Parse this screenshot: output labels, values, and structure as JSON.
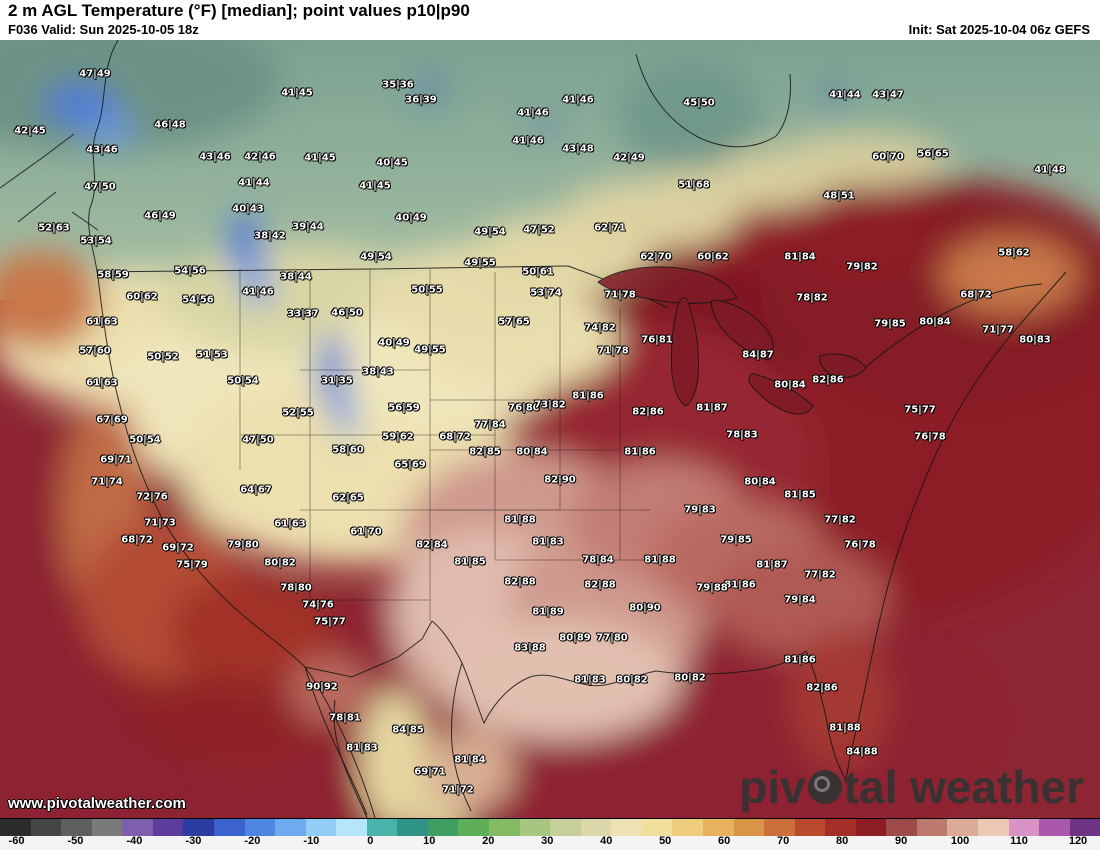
{
  "header": {
    "title": "2 m AGL Temperature (°F) [median]; point values p10|p90",
    "frame_info": "F036 Valid: Sun 2025-10-05 18z",
    "init_info": "Init: Sat 2025-10-04 06z GEFS"
  },
  "map": {
    "watermark": "www.pivotalweather.com",
    "brand": {
      "text": "pivotal weather",
      "part1": "piv",
      "part2": "tal weather"
    },
    "points": [
      [
        95,
        34,
        "47|49"
      ],
      [
        297,
        53,
        "41|45"
      ],
      [
        398,
        45,
        "35|36"
      ],
      [
        421,
        60,
        "36|39"
      ],
      [
        533,
        73,
        "41|46"
      ],
      [
        578,
        60,
        "41|46"
      ],
      [
        699,
        63,
        "45|50"
      ],
      [
        845,
        55,
        "41|44"
      ],
      [
        888,
        55,
        "43|47"
      ],
      [
        30,
        91,
        "42|45"
      ],
      [
        170,
        85,
        "46|48"
      ],
      [
        102,
        110,
        "43|46"
      ],
      [
        215,
        117,
        "43|46"
      ],
      [
        260,
        117,
        "42|46"
      ],
      [
        320,
        118,
        "41|45"
      ],
      [
        392,
        123,
        "40|45"
      ],
      [
        528,
        101,
        "41|46"
      ],
      [
        578,
        109,
        "43|48"
      ],
      [
        629,
        118,
        "42|49"
      ],
      [
        888,
        117,
        "60|70"
      ],
      [
        933,
        114,
        "56|65"
      ],
      [
        1050,
        130,
        "41|48"
      ],
      [
        100,
        147,
        "47|50"
      ],
      [
        254,
        143,
        "41|44"
      ],
      [
        375,
        146,
        "41|45"
      ],
      [
        694,
        145,
        "51|68"
      ],
      [
        839,
        156,
        "48|51"
      ],
      [
        160,
        176,
        "46|49"
      ],
      [
        248,
        169,
        "40|43"
      ],
      [
        308,
        187,
        "39|44"
      ],
      [
        411,
        178,
        "40|49"
      ],
      [
        490,
        192,
        "49|54"
      ],
      [
        539,
        190,
        "47|52"
      ],
      [
        610,
        188,
        "62|71"
      ],
      [
        54,
        188,
        "52|63"
      ],
      [
        96,
        201,
        "53|54"
      ],
      [
        270,
        196,
        "38|42"
      ],
      [
        1014,
        213,
        "58|62"
      ],
      [
        656,
        217,
        "62|70"
      ],
      [
        713,
        217,
        "60|62"
      ],
      [
        800,
        217,
        "81|84"
      ],
      [
        862,
        227,
        "79|82"
      ],
      [
        190,
        231,
        "54|56"
      ],
      [
        376,
        217,
        "49|54"
      ],
      [
        480,
        223,
        "49|55"
      ],
      [
        538,
        232,
        "50|61"
      ],
      [
        113,
        235,
        "58|59"
      ],
      [
        296,
        237,
        "38|44"
      ],
      [
        427,
        250,
        "50|55"
      ],
      [
        546,
        253,
        "53|74"
      ],
      [
        620,
        255,
        "71|78"
      ],
      [
        812,
        258,
        "78|82"
      ],
      [
        976,
        255,
        "68|72"
      ],
      [
        142,
        257,
        "60|62"
      ],
      [
        198,
        260,
        "54|56"
      ],
      [
        258,
        252,
        "41|46"
      ],
      [
        102,
        282,
        "61|63"
      ],
      [
        303,
        274,
        "33|37"
      ],
      [
        347,
        273,
        "46|50"
      ],
      [
        514,
        282,
        "57|65"
      ],
      [
        600,
        288,
        "74|82"
      ],
      [
        613,
        311,
        "71|78"
      ],
      [
        890,
        284,
        "79|85"
      ],
      [
        935,
        282,
        "80|84"
      ],
      [
        998,
        290,
        "71|77"
      ],
      [
        1035,
        300,
        "80|83"
      ],
      [
        95,
        311,
        "57|60"
      ],
      [
        163,
        317,
        "50|52"
      ],
      [
        212,
        315,
        "51|53"
      ],
      [
        394,
        303,
        "40|49"
      ],
      [
        430,
        310,
        "49|55"
      ],
      [
        337,
        341,
        "31|35"
      ],
      [
        378,
        332,
        "38|43"
      ],
      [
        243,
        341,
        "50|54"
      ],
      [
        102,
        343,
        "61|63"
      ],
      [
        657,
        300,
        "76|81"
      ],
      [
        758,
        315,
        "84|87"
      ],
      [
        790,
        345,
        "80|84"
      ],
      [
        828,
        340,
        "82|86"
      ],
      [
        524,
        368,
        "76|80"
      ],
      [
        550,
        365,
        "73|82"
      ],
      [
        588,
        356,
        "81|86"
      ],
      [
        648,
        372,
        "82|86"
      ],
      [
        712,
        368,
        "81|87"
      ],
      [
        742,
        395,
        "78|83"
      ],
      [
        490,
        385,
        "77|84"
      ],
      [
        485,
        412,
        "82|85"
      ],
      [
        532,
        412,
        "80|84"
      ],
      [
        560,
        440,
        "82|90"
      ],
      [
        640,
        412,
        "81|86"
      ],
      [
        298,
        373,
        "52|55"
      ],
      [
        404,
        368,
        "56|59"
      ],
      [
        398,
        397,
        "59|62"
      ],
      [
        455,
        397,
        "68|72"
      ],
      [
        410,
        425,
        "65|69"
      ],
      [
        348,
        410,
        "58|60"
      ],
      [
        258,
        400,
        "47|50"
      ],
      [
        145,
        400,
        "50|54"
      ],
      [
        348,
        458,
        "62|65"
      ],
      [
        256,
        450,
        "64|67"
      ],
      [
        290,
        484,
        "61|63"
      ],
      [
        366,
        492,
        "61|70"
      ],
      [
        112,
        380,
        "67|69"
      ],
      [
        116,
        420,
        "69|71"
      ],
      [
        107,
        442,
        "71|74"
      ],
      [
        152,
        457,
        "72|76"
      ],
      [
        160,
        483,
        "71|73"
      ],
      [
        137,
        500,
        "68|72"
      ],
      [
        178,
        508,
        "69|72"
      ],
      [
        192,
        525,
        "75|79"
      ],
      [
        243,
        505,
        "79|80"
      ],
      [
        280,
        523,
        "80|82"
      ],
      [
        296,
        548,
        "78|80"
      ],
      [
        318,
        565,
        "74|76"
      ],
      [
        330,
        582,
        "75|77"
      ],
      [
        432,
        505,
        "82|84"
      ],
      [
        470,
        522,
        "81|85"
      ],
      [
        520,
        480,
        "81|88"
      ],
      [
        548,
        502,
        "81|83"
      ],
      [
        520,
        542,
        "82|88"
      ],
      [
        548,
        572,
        "81|89"
      ],
      [
        530,
        608,
        "83|88"
      ],
      [
        575,
        598,
        "80|89"
      ],
      [
        612,
        598,
        "77|80"
      ],
      [
        600,
        545,
        "82|88"
      ],
      [
        645,
        568,
        "80|90"
      ],
      [
        598,
        520,
        "78|84"
      ],
      [
        660,
        520,
        "81|88"
      ],
      [
        700,
        470,
        "79|83"
      ],
      [
        736,
        500,
        "79|85"
      ],
      [
        772,
        525,
        "81|87"
      ],
      [
        740,
        545,
        "81|86"
      ],
      [
        712,
        548,
        "79|88"
      ],
      [
        800,
        560,
        "79|84"
      ],
      [
        820,
        535,
        "77|82"
      ],
      [
        860,
        505,
        "76|78"
      ],
      [
        920,
        370,
        "75|77"
      ],
      [
        930,
        397,
        "76|78"
      ],
      [
        840,
        480,
        "77|82"
      ],
      [
        760,
        442,
        "80|84"
      ],
      [
        800,
        455,
        "81|85"
      ],
      [
        590,
        640,
        "81|83"
      ],
      [
        632,
        640,
        "80|82"
      ],
      [
        690,
        638,
        "80|82"
      ],
      [
        800,
        620,
        "81|86"
      ],
      [
        822,
        648,
        "82|86"
      ],
      [
        845,
        688,
        "81|88"
      ],
      [
        862,
        712,
        "84|88"
      ],
      [
        322,
        647,
        "90|92"
      ],
      [
        345,
        678,
        "78|81"
      ],
      [
        362,
        708,
        "81|83"
      ],
      [
        408,
        690,
        "84|85"
      ],
      [
        430,
        732,
        "69|71"
      ],
      [
        458,
        750,
        "71|72"
      ],
      [
        470,
        720,
        "81|84"
      ]
    ]
  },
  "colorbar": {
    "ticks": [
      "-60",
      "-50",
      "-40",
      "-30",
      "-20",
      "-10",
      "0",
      "10",
      "20",
      "30",
      "40",
      "50",
      "60",
      "70",
      "80",
      "90",
      "100",
      "110",
      "120"
    ],
    "colors": [
      "#2b2b2b",
      "#454545",
      "#5f5f5f",
      "#7a7a7a",
      "#7d5fae",
      "#5c3d9e",
      "#2b3da0",
      "#3b62cf",
      "#4f86e2",
      "#6faaee",
      "#93ccf6",
      "#b6e4f8",
      "#49b4ac",
      "#2f9484",
      "#3f9e62",
      "#5fae58",
      "#84ba64",
      "#a8c680",
      "#c6cf9b",
      "#ddd8ab",
      "#ece2b4",
      "#f0e09c",
      "#eecd7c",
      "#e6b260",
      "#da9448",
      "#cc6f3a",
      "#ba4a2e",
      "#a42f28",
      "#8c1d24",
      "#9e4a4a",
      "#bc7a6e",
      "#dcab97",
      "#ecc9b4",
      "#d893c4",
      "#a958aa",
      "#6f3386"
    ]
  }
}
